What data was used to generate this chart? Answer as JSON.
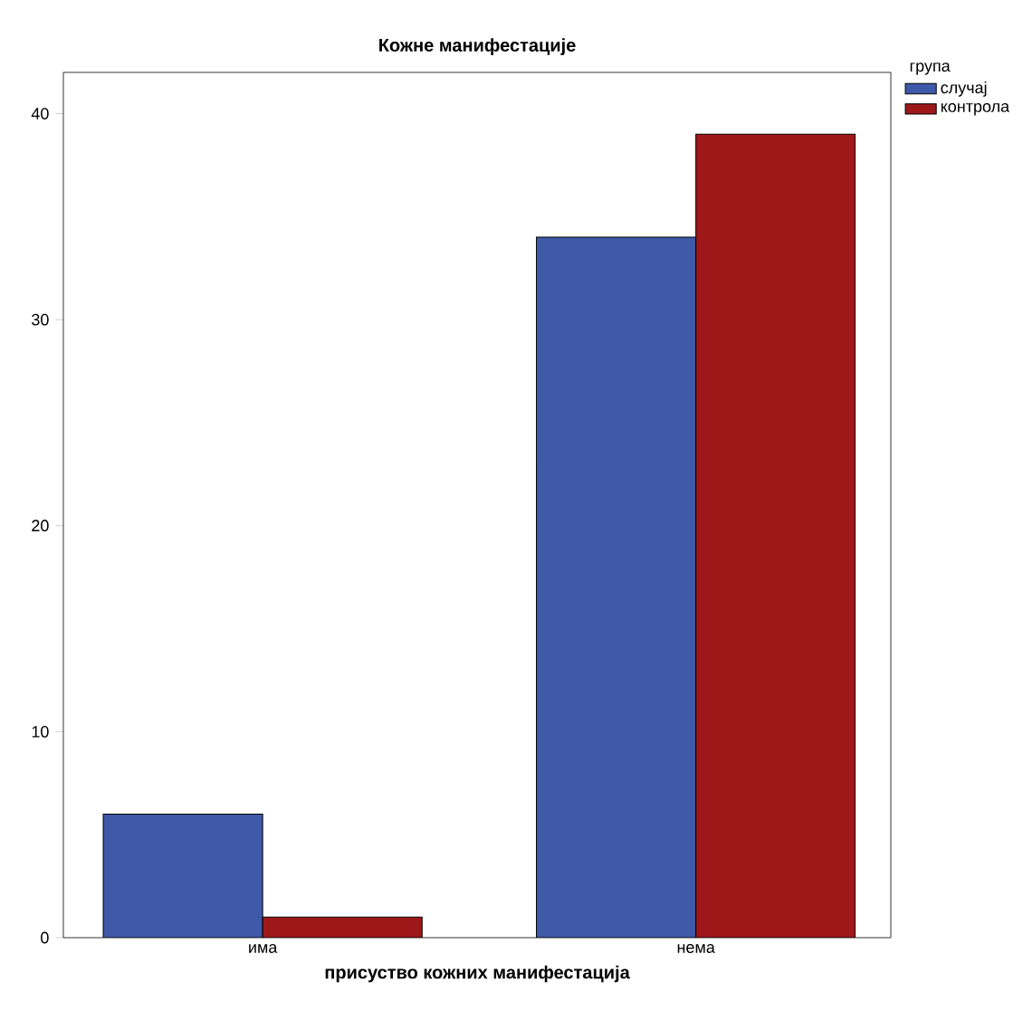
{
  "chart_data": {
    "type": "bar",
    "title": "Кожне манифестације",
    "xlabel": "присуство кожних манифестација",
    "legend_title": "група",
    "categories": [
      "има",
      "нема"
    ],
    "series": [
      {
        "name": "случај",
        "color": "#3f59a9",
        "values": [
          6,
          34
        ]
      },
      {
        "name": "контрола",
        "color": "#9e1719",
        "values": [
          1,
          39
        ]
      }
    ],
    "ylim": [
      0,
      42
    ],
    "yticks": [
      0,
      10,
      20,
      30,
      40
    ],
    "grid": false,
    "legend": "top right"
  }
}
